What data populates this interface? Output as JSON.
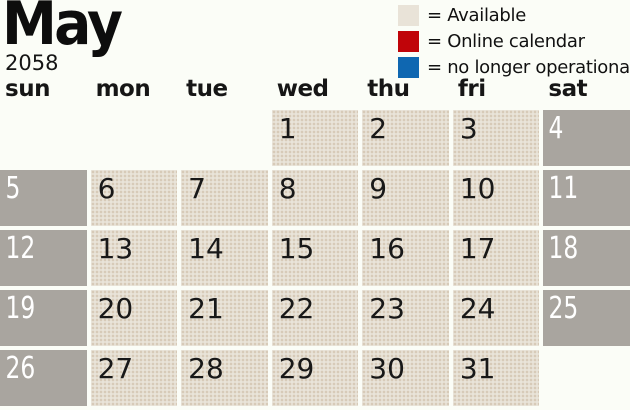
{
  "title": {
    "month": "May",
    "year": "2058"
  },
  "legend": {
    "items": [
      {
        "name": "available",
        "swatch_color": "#e9e3d8",
        "label": "= Available"
      },
      {
        "name": "online-calendar",
        "swatch_color": "#c00409",
        "label": "= Online calendar"
      },
      {
        "name": "no-longer-operational",
        "swatch_color": "#0f67b1",
        "label": "= no longer operational"
      }
    ]
  },
  "calendar": {
    "day_headers": [
      "sun",
      "mon",
      "tue",
      "wed",
      "thu",
      "fri",
      "sat"
    ],
    "weeks": [
      [
        null,
        null,
        null,
        {
          "day": "1",
          "state": "available"
        },
        {
          "day": "2",
          "state": "available"
        },
        {
          "day": "3",
          "state": "available"
        },
        {
          "day": "4",
          "state": "weekend"
        }
      ],
      [
        {
          "day": "5",
          "state": "weekend"
        },
        {
          "day": "6",
          "state": "available"
        },
        {
          "day": "7",
          "state": "available"
        },
        {
          "day": "8",
          "state": "available"
        },
        {
          "day": "9",
          "state": "available"
        },
        {
          "day": "10",
          "state": "available"
        },
        {
          "day": "11",
          "state": "weekend"
        }
      ],
      [
        {
          "day": "12",
          "state": "weekend"
        },
        {
          "day": "13",
          "state": "available"
        },
        {
          "day": "14",
          "state": "available"
        },
        {
          "day": "15",
          "state": "available"
        },
        {
          "day": "16",
          "state": "available"
        },
        {
          "day": "17",
          "state": "available"
        },
        {
          "day": "18",
          "state": "weekend"
        }
      ],
      [
        {
          "day": "19",
          "state": "weekend"
        },
        {
          "day": "20",
          "state": "available"
        },
        {
          "day": "21",
          "state": "available"
        },
        {
          "day": "22",
          "state": "available"
        },
        {
          "day": "23",
          "state": "available"
        },
        {
          "day": "24",
          "state": "available"
        },
        {
          "day": "25",
          "state": "weekend"
        }
      ],
      [
        {
          "day": "26",
          "state": "weekend"
        },
        {
          "day": "27",
          "state": "available"
        },
        {
          "day": "28",
          "state": "available"
        },
        {
          "day": "29",
          "state": "available"
        },
        {
          "day": "30",
          "state": "available"
        },
        {
          "day": "31",
          "state": "available"
        },
        null
      ]
    ]
  },
  "colors": {
    "page_background": "#fbfdf7",
    "available_cell": "#e9e4d9",
    "weekend_cell": "#a9a59f",
    "text_dark": "#1a1a1a",
    "text_light": "#ffffff"
  }
}
